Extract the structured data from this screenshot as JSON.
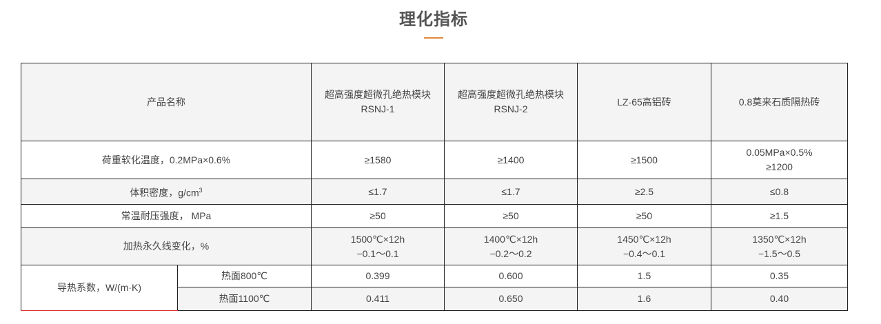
{
  "title": "理化指标",
  "accent_color": "#e08a3c",
  "table": {
    "header": {
      "label": "产品名称",
      "products": [
        {
          "name": "超高强度超微孔绝热模块",
          "code": "RSNJ-1"
        },
        {
          "name": "超高强度超微孔绝热模块",
          "code": "RSNJ-2"
        },
        {
          "name": "LZ-65高铝砖",
          "code": ""
        },
        {
          "name": "0.8莫来石质隔热砖",
          "code": ""
        }
      ]
    },
    "rows": [
      {
        "label": "荷重软化温度，0.2MPa×0.6%",
        "values": [
          [
            "≥1580"
          ],
          [
            "≥1400"
          ],
          [
            "≥1500"
          ],
          [
            "0.05MPa×0.5%",
            "≥1200"
          ]
        ]
      },
      {
        "label": "体积密度，g/cm",
        "sup": "3",
        "values": [
          [
            "≤1.7"
          ],
          [
            "≤1.7"
          ],
          [
            "≥2.5"
          ],
          [
            "≤0.8"
          ]
        ]
      },
      {
        "label": "常温耐压强度， MPa",
        "values": [
          [
            "≥50"
          ],
          [
            "≥50"
          ],
          [
            "≥50"
          ],
          [
            "≥1.5"
          ]
        ]
      },
      {
        "label": "加热永久线变化，%",
        "values": [
          [
            "1500℃×12h",
            "−0.1～0.1"
          ],
          [
            "1400℃×12h",
            "−0.2～0.2"
          ],
          [
            "1450℃×12h",
            "−0.4～0.1"
          ],
          [
            "1350℃×12h",
            "−1.5～0.5"
          ]
        ]
      }
    ],
    "conductivity": {
      "label": "导热系数，W/(m·K)",
      "sub": [
        {
          "label": "热面800℃",
          "values": [
            "0.399",
            "0.600",
            "1.5",
            "0.35"
          ]
        },
        {
          "label": "热面1100℃",
          "values": [
            "0.411",
            "0.650",
            "1.6",
            "0.40"
          ]
        }
      ]
    }
  }
}
